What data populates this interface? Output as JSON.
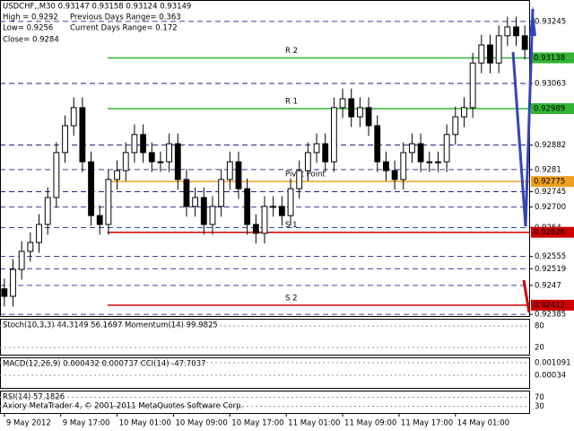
{
  "chart_data": {
    "type": "candlestick",
    "title": "USDCHF,,M30  0.93147 0.93158 0.93124 0.93149",
    "info_lines": [
      "High = 0.9292",
      "Previous Days Range= 0.363",
      "Low= 0.9256",
      "Current Days Range= 0.172",
      "Close= 0.9284"
    ],
    "open": [
      0.9246,
      0.92438,
      0.92517,
      0.9257,
      0.92596,
      0.92649,
      0.92728,
      0.9286,
      0.92939,
      0.92992,
      0.92833,
      0.92675,
      0.92649,
      0.92781,
      0.92807,
      0.9286,
      0.92913,
      0.9286,
      0.92833,
      0.92833,
      0.92886,
      0.92781,
      0.92702,
      0.92728,
      0.92649,
      0.92702,
      0.92781,
      0.92833,
      0.92754,
      0.92649,
      0.92623,
      0.92702,
      0.92702,
      0.92675,
      0.92754,
      0.92807,
      0.9286,
      0.92886,
      0.92833,
      0.92992,
      0.93018,
      0.92965,
      0.92992,
      0.92939,
      0.92833,
      0.92807,
      0.92781,
      0.9286,
      0.92886,
      0.92833,
      0.92833,
      0.92833,
      0.92913,
      0.92965,
      0.92992,
      0.93123,
      0.93176,
      0.93123,
      0.93203,
      0.93229,
      0.93203
    ],
    "high": [
      0.9249,
      0.92547,
      0.926,
      0.92626,
      0.92679,
      0.92758,
      0.9289,
      0.92969,
      0.93022,
      0.93022,
      0.92863,
      0.92705,
      0.92811,
      0.92837,
      0.9289,
      0.92943,
      0.92943,
      0.9289,
      0.92863,
      0.92916,
      0.92916,
      0.92811,
      0.92758,
      0.92758,
      0.92732,
      0.92811,
      0.92863,
      0.92863,
      0.92784,
      0.92679,
      0.92732,
      0.92732,
      0.92732,
      0.92784,
      0.92837,
      0.9289,
      0.92916,
      0.92916,
      0.93022,
      0.93048,
      0.93048,
      0.93022,
      0.93022,
      0.92969,
      0.92863,
      0.92837,
      0.9289,
      0.92916,
      0.92916,
      0.92863,
      0.92863,
      0.92943,
      0.92995,
      0.93022,
      0.93153,
      0.93206,
      0.93206,
      0.93233,
      0.93259,
      0.93259,
      0.93233
    ],
    "low": [
      0.92408,
      0.92408,
      0.92487,
      0.9254,
      0.92566,
      0.92619,
      0.92698,
      0.9283,
      0.92909,
      0.92803,
      0.92645,
      0.92619,
      0.92619,
      0.92751,
      0.92777,
      0.9283,
      0.9283,
      0.92803,
      0.92803,
      0.92803,
      0.92751,
      0.92672,
      0.92672,
      0.92619,
      0.92619,
      0.92672,
      0.92751,
      0.92724,
      0.92619,
      0.92593,
      0.92593,
      0.92672,
      0.92645,
      0.92645,
      0.92724,
      0.92777,
      0.9283,
      0.92803,
      0.92803,
      0.92962,
      0.92935,
      0.92935,
      0.92909,
      0.92803,
      0.92777,
      0.92751,
      0.92751,
      0.9283,
      0.92803,
      0.92803,
      0.92803,
      0.92803,
      0.92883,
      0.92935,
      0.92962,
      0.93093,
      0.93093,
      0.93093,
      0.93173,
      0.93173,
      0.93133
    ],
    "close": [
      0.92438,
      0.92517,
      0.9257,
      0.92596,
      0.92649,
      0.92728,
      0.9286,
      0.92939,
      0.92992,
      0.92833,
      0.92675,
      0.92649,
      0.92781,
      0.92807,
      0.9286,
      0.92913,
      0.9286,
      0.92833,
      0.92833,
      0.92886,
      0.92781,
      0.92702,
      0.92728,
      0.92649,
      0.92702,
      0.92781,
      0.92833,
      0.92754,
      0.92649,
      0.92623,
      0.92702,
      0.92702,
      0.92675,
      0.92754,
      0.92807,
      0.9286,
      0.92886,
      0.92833,
      0.92992,
      0.93018,
      0.92965,
      0.92992,
      0.92939,
      0.92833,
      0.92807,
      0.92781,
      0.9286,
      0.92886,
      0.92833,
      0.92833,
      0.92833,
      0.92913,
      0.92965,
      0.92992,
      0.93123,
      0.93176,
      0.93123,
      0.93203,
      0.93229,
      0.93203,
      0.93163
    ],
    "xlim": [
      -0.5,
      60.5
    ],
    "xticks": [
      {
        "value": 0,
        "label": "9 May 2012"
      },
      {
        "value": 6.5,
        "label": "9 May 17:00"
      },
      {
        "value": 13,
        "label": "10 May 01:00"
      },
      {
        "value": 19.5,
        "label": "10 May 09:00"
      },
      {
        "value": 26,
        "label": "10 May 17:00"
      },
      {
        "value": 32.5,
        "label": "11 May 01:00"
      },
      {
        "value": 39,
        "label": "11 May 09:00"
      },
      {
        "value": 45.5,
        "label": "11 May 17:00"
      },
      {
        "value": 52,
        "label": "14 May 01:00"
      }
    ],
    "ylim": [
      0.9238,
      0.93308
    ],
    "yticks": [
      0.93245,
      0.93063,
      0.92882,
      0.9281,
      0.92745,
      {
        "value": 0.927,
        "label": "0.92700"
      },
      0.9264,
      0.92555,
      0.92519,
      0.9247,
      0.92385
    ],
    "grid": true,
    "levels": [
      {
        "name": "R 2",
        "value": 0.93138,
        "color": "#33b533"
      },
      {
        "name": "R 1",
        "value": 0.92989,
        "color": "#33b533"
      },
      {
        "name": "Pivot Point",
        "value": 0.92775,
        "color": "#f0a020"
      },
      {
        "name": "S 1",
        "value": 0.92626,
        "color": "#d00000"
      },
      {
        "name": "S 2",
        "value": 0.92412,
        "color": "#d00000"
      }
    ],
    "panes": [
      {
        "label": "Stoch(10,3,3) 44.3149 56.1697  Momentum(14) 99.9825",
        "ylim": [
          0,
          100
        ],
        "yticks": [
          80,
          20
        ]
      },
      {
        "label": "MACD(12,26,9) 0.000432 0.000737  CCI(14) -47.7037",
        "ylim": [
          -0.0004,
          0.0014
        ],
        "yticks": [
          0.001091,
          0.00034
        ]
      },
      {
        "label": "RSI(14) 57.1826",
        "ylim": [
          0,
          100
        ],
        "yticks": [
          70,
          30
        ]
      }
    ],
    "footer": "Axiory MetaTrader 4, © 2001-2011 MetaQuotes Software Corp."
  }
}
